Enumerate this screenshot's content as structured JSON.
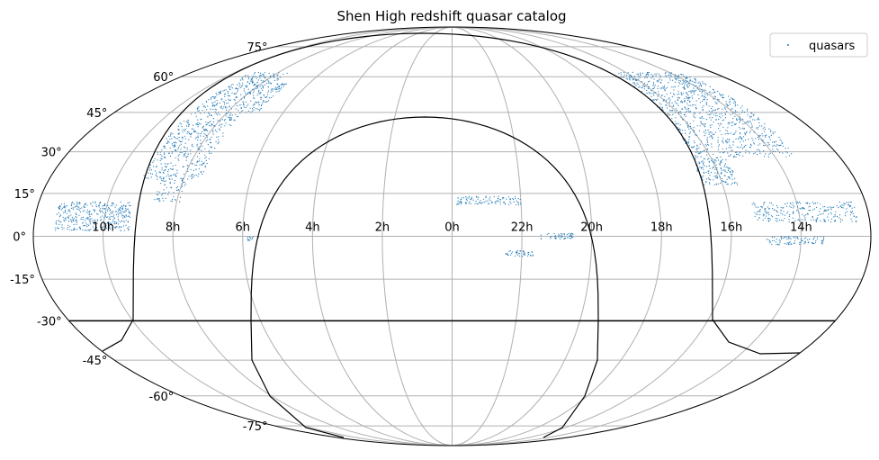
{
  "chart_data": {
    "type": "scatter",
    "projection": "mollweide",
    "title": "Shen High redshift quasar catalog",
    "grid": true,
    "legend": {
      "location": "top-right",
      "entries": [
        "quasars"
      ]
    },
    "ra_tick_labels": [
      "10h",
      "8h",
      "6h",
      "4h",
      "2h",
      "0h",
      "22h",
      "20h",
      "18h",
      "16h",
      "14h"
    ],
    "ra_tick_hours": [
      10,
      8,
      6,
      4,
      2,
      0,
      22,
      20,
      18,
      16,
      14
    ],
    "dec_tick_labels": [
      "-75°",
      "-60°",
      "-45°",
      "-30°",
      "-15°",
      "0°",
      "15°",
      "30°",
      "45°",
      "60°",
      "75°"
    ],
    "dec_tick_values": [
      -75,
      -60,
      -45,
      -30,
      -15,
      0,
      15,
      30,
      45,
      60,
      75
    ],
    "horizon_dec": -30,
    "colors": {
      "points": "#1f77b4",
      "grid": "#b0b0b0",
      "curves": "#000000"
    },
    "series": [
      {
        "name": "quasars",
        "regions": [
          {
            "ra": [
              112,
              139
            ],
            "dec": [
              20,
              62
            ],
            "n": 700
          },
          {
            "ra": [
              139,
              171
            ],
            "dec": [
              2,
              12
            ],
            "n": 380
          },
          {
            "ra": [
              118,
              130
            ],
            "dec": [
              12,
              20
            ],
            "n": 60
          },
          {
            "ra": [
              103,
              110
            ],
            "dec": [
              45,
              57
            ],
            "n": 80
          },
          {
            "ra": [
              83,
              88
            ],
            "dec": [
              -2,
              0
            ],
            "n": 12
          },
          {
            "ra": [
              200,
              248
            ],
            "dec": [
              28,
              62
            ],
            "n": 900
          },
          {
            "ra": [
              233,
              249
            ],
            "dec": [
              18,
              28
            ],
            "n": 150
          },
          {
            "ra": [
              185,
              230
            ],
            "dec": [
              5,
              12
            ],
            "n": 250
          },
          {
            "ra": [
              200,
              225
            ],
            "dec": [
              -3,
              0
            ],
            "n": 90
          },
          {
            "ra": [
              330,
              358
            ],
            "dec": [
              11,
              14
            ],
            "n": 110
          },
          {
            "ra": [
              308,
              322
            ],
            "dec": [
              -1,
              1
            ],
            "n": 50
          },
          {
            "ra": [
              325,
              337
            ],
            "dec": [
              -7,
              -5
            ],
            "n": 45
          }
        ]
      }
    ],
    "galactic_curves": [
      "celestial equator",
      "galactic plane"
    ]
  }
}
